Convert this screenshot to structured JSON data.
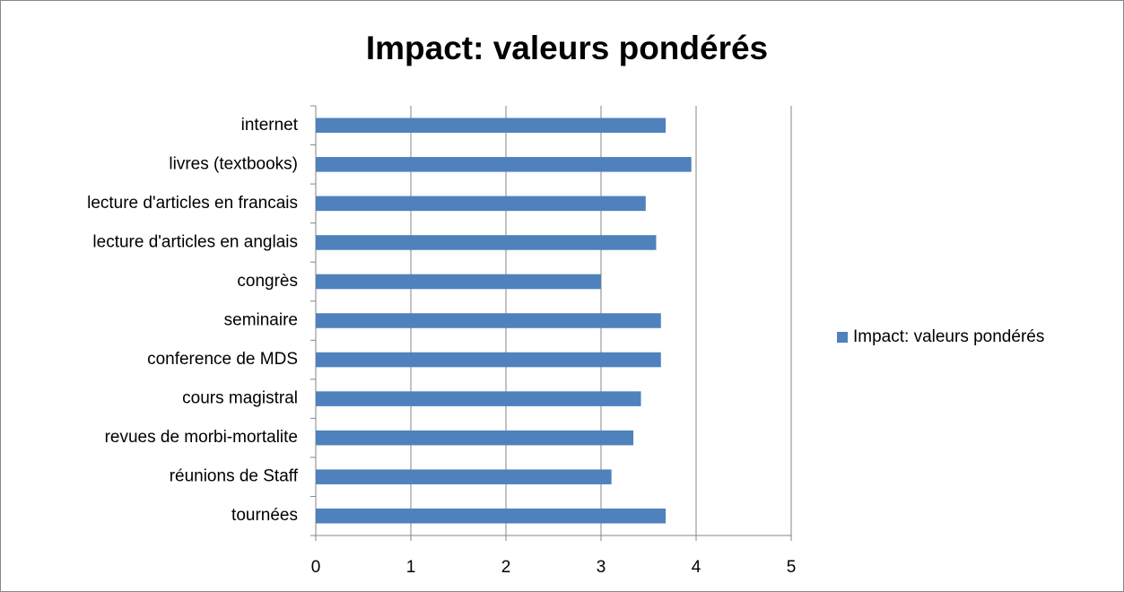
{
  "chart_data": {
    "type": "bar",
    "orientation": "horizontal",
    "title": "Impact: valeurs pondérés",
    "categories": [
      "internet",
      "livres (textbooks)",
      "lecture d'articles en francais",
      "lecture d'articles en anglais",
      "congrès",
      "seminaire",
      "conference de MDS",
      "cours magistral",
      "revues de morbi-mortalite",
      "réunions de Staff",
      "tournées"
    ],
    "series": [
      {
        "name": "Impact: valeurs pondérés",
        "color": "#4f81bd",
        "values": [
          3.68,
          3.95,
          3.47,
          3.58,
          3.0,
          3.63,
          3.63,
          3.42,
          3.34,
          3.11,
          3.68
        ]
      }
    ],
    "xlim": [
      0,
      5
    ],
    "xticks": [
      0,
      1,
      2,
      3,
      4,
      5
    ],
    "grid": true,
    "legend": "right"
  }
}
